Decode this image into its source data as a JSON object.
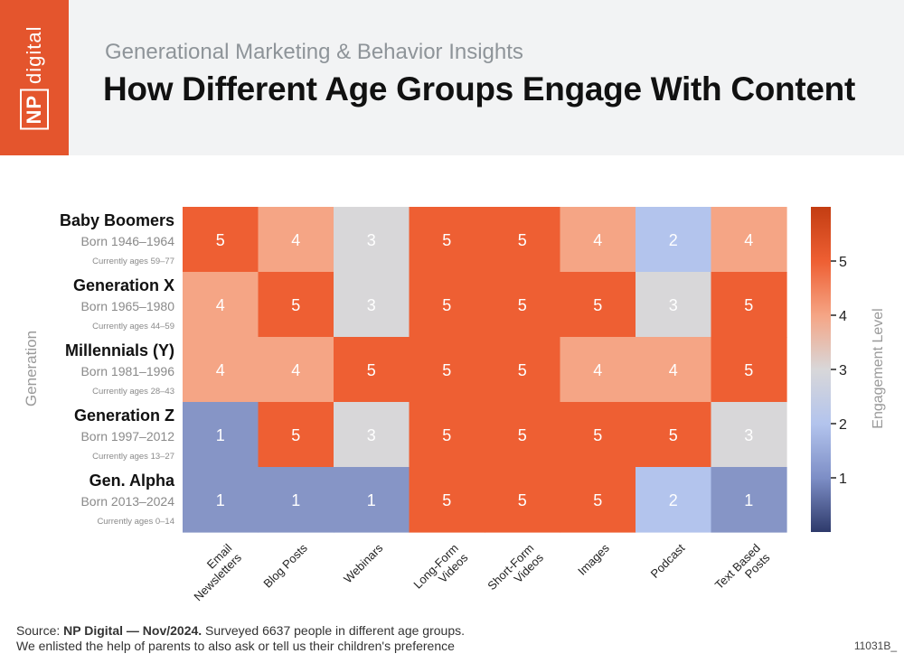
{
  "header": {
    "logo_np": "NP",
    "logo_word": "digital",
    "subtitle": "Generational Marketing & Behavior Insights",
    "title": "How Different Age Groups Engage With Content"
  },
  "footer": {
    "source_label": "Source:",
    "source_bold": "NP Digital — Nov/2024.",
    "source_rest": "Surveyed 6637 people in different age groups.",
    "line2": "We enlisted the help of parents to also ask or tell us their children's preference",
    "code": "11031B_"
  },
  "colors": {
    "orange": "#e4552d",
    "v5": "#ee5f33",
    "v4": "#f5a585",
    "v3": "#d8d7d9",
    "v2": "#b3c4ed",
    "v1": "#8695c6"
  },
  "chart_data": {
    "type": "heatmap",
    "ylabel": "Generation",
    "colorbar_label": "Engagement Level",
    "colorbar_ticks": [
      "1",
      "2",
      "3",
      "4",
      "5"
    ],
    "colorbar_range": [
      0,
      6
    ],
    "columns": [
      "Email Newsletters",
      "Blog Posts",
      "Webinars",
      "Long-Form Videos",
      "Short-Form Videos",
      "Images",
      "Podcast",
      "Text Based Posts"
    ],
    "rows": [
      {
        "name": "Baby Boomers",
        "born": "Born 1946–1964",
        "ages": "Currently ages 59–77",
        "values": [
          5,
          4,
          3,
          5,
          5,
          4,
          2,
          4
        ]
      },
      {
        "name": "Generation X",
        "born": "Born 1965–1980",
        "ages": "Currently ages 44–59",
        "values": [
          4,
          5,
          3,
          5,
          5,
          5,
          3,
          5
        ]
      },
      {
        "name": "Millennials (Y)",
        "born": "Born 1981–1996",
        "ages": "Currently ages 28–43",
        "values": [
          4,
          4,
          5,
          5,
          5,
          4,
          4,
          5
        ]
      },
      {
        "name": "Generation Z",
        "born": "Born 1997–2012",
        "ages": "Currently ages 13–27",
        "values": [
          1,
          5,
          3,
          5,
          5,
          5,
          5,
          3
        ]
      },
      {
        "name": "Gen. Alpha",
        "born": "Born 2013–2024",
        "ages": "Currently ages 0–14",
        "values": [
          1,
          1,
          1,
          5,
          5,
          5,
          2,
          1
        ]
      }
    ]
  }
}
